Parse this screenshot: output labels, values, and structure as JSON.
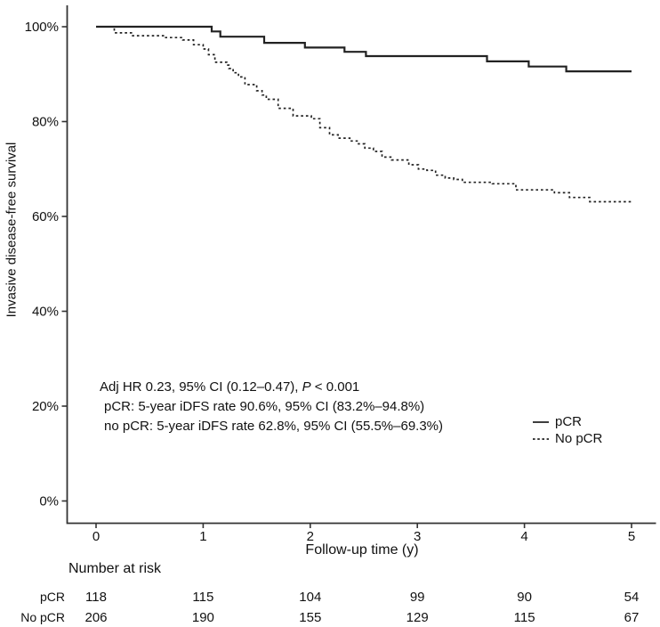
{
  "figure": {
    "background": "#ffffff",
    "text_color": "#111111",
    "axis_color": "#333333",
    "curve_color": "#222222"
  },
  "chart_data": {
    "type": "line",
    "subtype": "kaplan-meier-step",
    "title": "",
    "xlabel": "Follow-up time (y)",
    "ylabel": "Invasive disease-free survival",
    "xlim": [
      0,
      5
    ],
    "ylim_pct": [
      0,
      100
    ],
    "grid": false,
    "legend_position": "right-center",
    "x_ticks": [
      {
        "value": 0,
        "label": "0"
      },
      {
        "value": 1,
        "label": "1"
      },
      {
        "value": 2,
        "label": "2"
      },
      {
        "value": 3,
        "label": "3"
      },
      {
        "value": 4,
        "label": "4"
      },
      {
        "value": 5,
        "label": "5"
      }
    ],
    "y_ticks": [
      {
        "value": 100,
        "label": "100%"
      },
      {
        "value": 80,
        "label": "80%"
      },
      {
        "value": 60,
        "label": "60%"
      },
      {
        "value": 40,
        "label": "40%"
      },
      {
        "value": 20,
        "label": "20%"
      },
      {
        "value": 0,
        "label": "0%"
      }
    ],
    "series": [
      {
        "name": "pCR",
        "line_style": "solid",
        "five_year_rate_pct": 90.6,
        "points_t_pct": [
          [
            0,
            100
          ],
          [
            1.08,
            99.0
          ],
          [
            1.16,
            97.9
          ],
          [
            1.57,
            96.6
          ],
          [
            1.95,
            95.6
          ],
          [
            2.32,
            94.7
          ],
          [
            2.52,
            93.8
          ],
          [
            3.65,
            92.7
          ],
          [
            4.04,
            91.6
          ],
          [
            4.39,
            90.6
          ],
          [
            5,
            90.6
          ]
        ]
      },
      {
        "name": "No pCR",
        "line_style": "dashed",
        "five_year_rate_pct": 62.8,
        "points_t_pct": [
          [
            0,
            100
          ],
          [
            0.17,
            98.7
          ],
          [
            0.33,
            98.1
          ],
          [
            0.64,
            97.7
          ],
          [
            0.81,
            97.2
          ],
          [
            0.91,
            96.2
          ],
          [
            1.0,
            95.3
          ],
          [
            1.05,
            94.1
          ],
          [
            1.11,
            92.5
          ],
          [
            1.22,
            91.9
          ],
          [
            1.24,
            91.2
          ],
          [
            1.28,
            90.3
          ],
          [
            1.33,
            89.4
          ],
          [
            1.39,
            87.8
          ],
          [
            1.5,
            86.5
          ],
          [
            1.55,
            85.6
          ],
          [
            1.59,
            84.7
          ],
          [
            1.7,
            82.8
          ],
          [
            1.84,
            81.2
          ],
          [
            2.01,
            80.6
          ],
          [
            2.09,
            78.7
          ],
          [
            2.18,
            77.2
          ],
          [
            2.26,
            76.5
          ],
          [
            2.37,
            75.9
          ],
          [
            2.45,
            75.3
          ],
          [
            2.51,
            74.4
          ],
          [
            2.59,
            73.7
          ],
          [
            2.67,
            72.5
          ],
          [
            2.76,
            71.9
          ],
          [
            2.92,
            70.9
          ],
          [
            3.01,
            70.0
          ],
          [
            3.09,
            69.7
          ],
          [
            3.17,
            68.7
          ],
          [
            3.26,
            68.1
          ],
          [
            3.34,
            67.8
          ],
          [
            3.42,
            67.2
          ],
          [
            3.7,
            66.9
          ],
          [
            3.92,
            65.6
          ],
          [
            4.28,
            65.0
          ],
          [
            4.42,
            64.0
          ],
          [
            4.61,
            63.1
          ],
          [
            5,
            62.8
          ]
        ]
      }
    ]
  },
  "annotation": {
    "line1_pre": "Adj HR 0.23, 95% CI (0.12–0.47), ",
    "line1_italic": "P",
    "line1_post": " < 0.001",
    "line2": "pCR: 5-year iDFS rate 90.6%, 95% CI (83.2%–94.8%)",
    "line3": "no pCR: 5-year iDFS rate 62.8%, 95% CI (55.5%–69.3%)"
  },
  "risk_table": {
    "title": "Number at risk",
    "time_points": [
      0,
      1,
      2,
      3,
      4,
      5
    ],
    "rows": [
      {
        "label": "pCR",
        "counts": [
          118,
          115,
          104,
          99,
          90,
          54
        ]
      },
      {
        "label": "No pCR",
        "counts": [
          206,
          190,
          155,
          129,
          115,
          67
        ]
      }
    ]
  }
}
